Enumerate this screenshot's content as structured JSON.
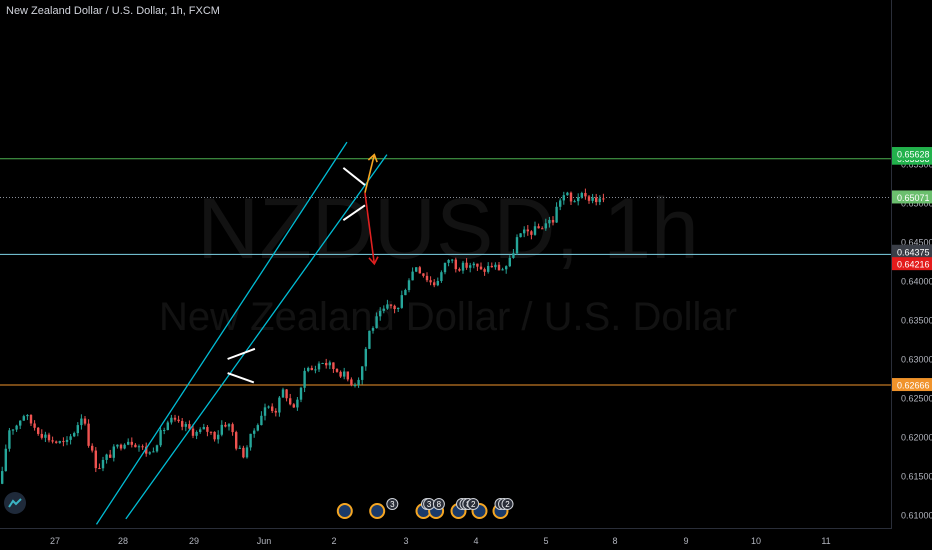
{
  "header": {
    "title": "New Zealand Dollar / U.S. Dollar, 1h, FXCM"
  },
  "watermark": {
    "symbol": "NZDUSD, 1h",
    "name": "New Zealand Dollar / U.S. Dollar"
  },
  "colors": {
    "background": "#000000",
    "up_candle": "#26a69a",
    "down_candle": "#ef5350",
    "channel": "#00bcd4",
    "green_level": "#4caf50",
    "blue_level": "#7fd4e8",
    "orange_level": "#f0932b",
    "target_up": "#f5a623",
    "target_down": "#e02020"
  },
  "chart_data": {
    "type": "candlestick",
    "title": "New Zealand Dollar / U.S. Dollar, 1h, FXCM",
    "ylim": [
      0.6095,
      0.6578
    ],
    "y_ticks": [
      "0.65500",
      "0.65000",
      "0.64500",
      "0.64000",
      "0.63500",
      "0.63000",
      "0.62500",
      "0.62000",
      "0.61500",
      "0.61000"
    ],
    "x_ticks": [
      "27",
      "28",
      "29",
      "Jun",
      "2",
      "3",
      "4",
      "5",
      "8",
      "9",
      "10",
      "11"
    ],
    "grid": false,
    "horizontal_levels": [
      {
        "value": 0.65568,
        "label": "0.65568",
        "style": "green"
      },
      {
        "value": 0.64342,
        "label": "0.64342",
        "style": "blue"
      },
      {
        "value": 0.62666,
        "label": "0.62666",
        "style": "orange"
      }
    ],
    "price_tags": [
      {
        "value": 0.65628,
        "label": "0.65628",
        "style": "green-solid"
      },
      {
        "value": 0.65071,
        "label": "0.65071",
        "style": "green-soft"
      },
      {
        "value": 0.64375,
        "label": "0.64375",
        "style": "grey"
      },
      {
        "value": 0.64216,
        "label": "0.64216",
        "style": "red"
      }
    ],
    "close_path": [
      [
        0,
        0.614
      ],
      [
        3,
        0.6175
      ],
      [
        8,
        0.621
      ],
      [
        15,
        0.6215
      ],
      [
        22,
        0.623
      ],
      [
        30,
        0.6218
      ],
      [
        40,
        0.6205
      ],
      [
        52,
        0.6195
      ],
      [
        65,
        0.619
      ],
      [
        74,
        0.621
      ],
      [
        82,
        0.6232
      ],
      [
        88,
        0.619
      ],
      [
        96,
        0.616
      ],
      [
        104,
        0.6172
      ],
      [
        115,
        0.6185
      ],
      [
        125,
        0.6198
      ],
      [
        135,
        0.6192
      ],
      [
        148,
        0.6178
      ],
      [
        158,
        0.62
      ],
      [
        168,
        0.6222
      ],
      [
        178,
        0.6215
      ],
      [
        185,
        0.6212
      ],
      [
        195,
        0.6205
      ],
      [
        205,
        0.621
      ],
      [
        215,
        0.62
      ],
      [
        222,
        0.622
      ],
      [
        230,
        0.6212
      ],
      [
        236,
        0.6185
      ],
      [
        242,
        0.6178
      ],
      [
        250,
        0.62
      ],
      [
        258,
        0.6225
      ],
      [
        266,
        0.624
      ],
      [
        275,
        0.6235
      ],
      [
        283,
        0.6262
      ],
      [
        290,
        0.6238
      ],
      [
        298,
        0.6245
      ],
      [
        303,
        0.629
      ],
      [
        312,
        0.6285
      ],
      [
        320,
        0.6298
      ],
      [
        330,
        0.629
      ],
      [
        340,
        0.6283
      ],
      [
        348,
        0.6272
      ],
      [
        355,
        0.627
      ],
      [
        360,
        0.6285
      ],
      [
        368,
        0.6335
      ],
      [
        378,
        0.6355
      ],
      [
        388,
        0.6368
      ],
      [
        397,
        0.6365
      ],
      [
        403,
        0.639
      ],
      [
        408,
        0.6405
      ],
      [
        415,
        0.642
      ],
      [
        425,
        0.6405
      ],
      [
        432,
        0.6395
      ],
      [
        440,
        0.641
      ],
      [
        448,
        0.643
      ],
      [
        455,
        0.642
      ],
      [
        462,
        0.6418
      ],
      [
        470,
        0.6422
      ],
      [
        480,
        0.6412
      ],
      [
        490,
        0.642
      ],
      [
        500,
        0.6415
      ],
      [
        508,
        0.6422
      ],
      [
        516,
        0.6455
      ],
      [
        525,
        0.6462
      ],
      [
        535,
        0.6465
      ],
      [
        545,
        0.6475
      ],
      [
        552,
        0.6478
      ],
      [
        558,
        0.6505
      ],
      [
        565,
        0.6512
      ],
      [
        570,
        0.65
      ],
      [
        577,
        0.651
      ],
      [
        584,
        0.6505
      ],
      [
        590,
        0.6508
      ],
      [
        598,
        0.6502
      ],
      [
        605,
        0.6507
      ]
    ],
    "channel": [
      {
        "from": [
          0.61,
          0.6088
        ],
        "to": [
          4.18,
          0.6578
        ],
        "label": ""
      },
      {
        "from": [
          1.04,
          0.6095
        ],
        "to": [
          4.735,
          0.6562
        ],
        "label": ""
      }
    ],
    "patterns": [
      {
        "type": "bear_flag",
        "segments": [
          [
            [
              2.48,
              0.63
            ],
            [
              2.87,
              0.6313
            ]
          ],
          [
            [
              2.48,
              0.6282
            ],
            [
              2.855,
              0.627
            ]
          ]
        ]
      },
      {
        "type": "triangle",
        "segments": [
          [
            [
              4.13,
              0.6545
            ],
            [
              4.43,
              0.6523
            ]
          ],
          [
            [
              4.13,
              0.6478
            ],
            [
              4.43,
              0.6497
            ]
          ]
        ]
      }
    ],
    "projections": [
      {
        "direction": "up",
        "from": [
          4.43,
          0.6513
        ],
        "to": [
          4.56,
          0.6562
        ]
      },
      {
        "direction": "down",
        "from": [
          4.43,
          0.6513
        ],
        "to": [
          4.56,
          0.6422
        ]
      }
    ],
    "event_markers": [
      {
        "label": "3",
        "x": 4.81
      },
      {
        "label": "2",
        "x": 5.3
      },
      {
        "label": "3",
        "x": 5.33
      },
      {
        "label": "8",
        "x": 5.47
      },
      {
        "label": "5",
        "x": 5.8
      },
      {
        "label": "4",
        "x": 5.85
      },
      {
        "label": "8",
        "x": 5.89
      },
      {
        "label": "2",
        "x": 5.96
      },
      {
        "label": "3",
        "x": 6.35
      },
      {
        "label": "2",
        "x": 6.4
      },
      {
        "label": "2",
        "x": 6.45
      }
    ]
  }
}
